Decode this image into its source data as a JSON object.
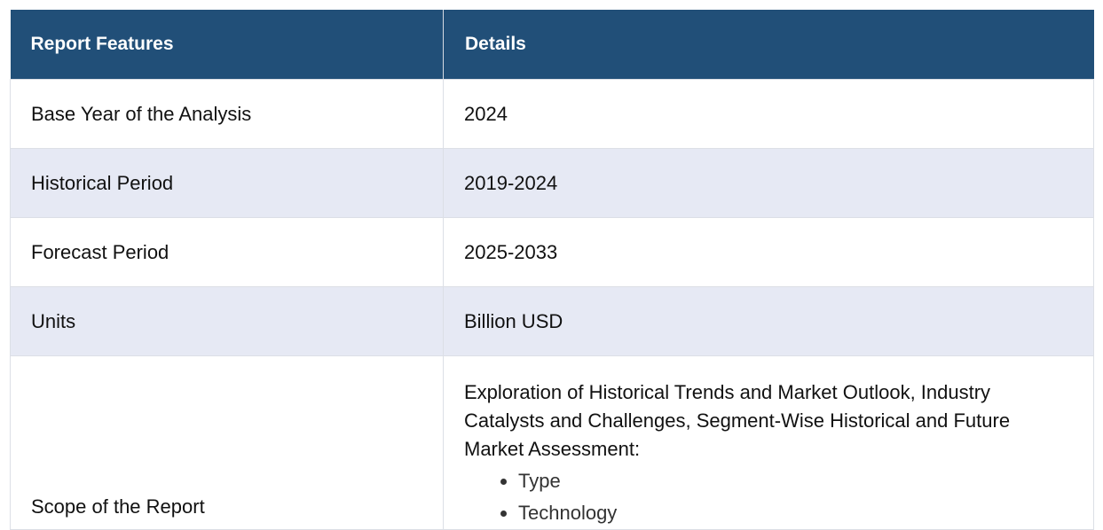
{
  "table": {
    "headers": [
      "Report Features",
      "Details"
    ],
    "rows": [
      {
        "feature": "Base Year of the Analysis",
        "detail": "2024"
      },
      {
        "feature": "Historical Period",
        "detail": "2019-2024"
      },
      {
        "feature": "Forecast Period",
        "detail": "2025-2033"
      },
      {
        "feature": "Units",
        "detail": "Billion USD"
      }
    ],
    "scope": {
      "feature": "Scope of the Report",
      "intro": "Exploration of Historical Trends and Market Outlook, Industry Catalysts and Challenges, Segment-Wise Historical and Future Market Assessment:",
      "items": [
        "Type",
        "Technology"
      ]
    }
  },
  "colors": {
    "header_background": "#214f78",
    "header_text": "#ffffff",
    "alternate_row_background": "#e6e9f4",
    "row_background": "#ffffff"
  }
}
